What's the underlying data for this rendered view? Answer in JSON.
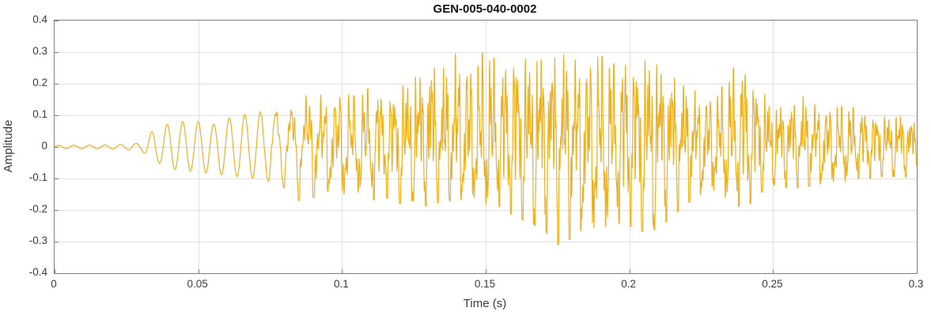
{
  "chart_data": {
    "type": "line",
    "title": "GEN-005-040-0002",
    "xlabel": "Time (s)",
    "ylabel": "Amplitude",
    "xlim": [
      0,
      0.3
    ],
    "ylim": [
      -0.4,
      0.4
    ],
    "grid": true,
    "line_color": "#EDB120",
    "axis_color": "#7f7f7f",
    "grid_color": "#e0e0e0",
    "x_tick_labels": [
      "0",
      "0.05",
      "0.1",
      "0.15",
      "0.2",
      "0.25",
      "0.3"
    ],
    "x_tick_values": [
      0,
      0.05,
      0.1,
      0.15,
      0.2,
      0.25,
      0.3
    ],
    "y_tick_labels": [
      "-0.4",
      "-0.3",
      "-0.2",
      "-0.1",
      "0",
      "0.1",
      "0.2",
      "0.3",
      "0.4"
    ],
    "y_tick_values": [
      -0.4,
      -0.3,
      -0.2,
      -0.1,
      0,
      0.1,
      0.2,
      0.3,
      0.4
    ],
    "series": [
      {
        "name": "waveform",
        "description": "dense audio waveform; envelope estimates of peak amplitude vs time",
        "envelope_upper": [
          [
            0,
            0.005
          ],
          [
            0.02,
            0.006
          ],
          [
            0.03,
            0.012
          ],
          [
            0.034,
            0.05
          ],
          [
            0.04,
            0.075
          ],
          [
            0.045,
            0.08
          ],
          [
            0.05,
            0.08
          ],
          [
            0.055,
            0.07
          ],
          [
            0.06,
            0.09
          ],
          [
            0.065,
            0.1
          ],
          [
            0.07,
            0.11
          ],
          [
            0.075,
            0.12
          ],
          [
            0.08,
            0.13
          ],
          [
            0.085,
            0.16
          ],
          [
            0.09,
            0.18
          ],
          [
            0.095,
            0.15
          ],
          [
            0.1,
            0.17
          ],
          [
            0.105,
            0.16
          ],
          [
            0.11,
            0.19
          ],
          [
            0.115,
            0.18
          ],
          [
            0.12,
            0.2
          ],
          [
            0.125,
            0.24
          ],
          [
            0.13,
            0.33
          ],
          [
            0.135,
            0.26
          ],
          [
            0.14,
            0.3
          ],
          [
            0.145,
            0.25
          ],
          [
            0.15,
            0.31
          ],
          [
            0.155,
            0.26
          ],
          [
            0.16,
            0.32
          ],
          [
            0.165,
            0.28
          ],
          [
            0.17,
            0.33
          ],
          [
            0.175,
            0.33
          ],
          [
            0.18,
            0.28
          ],
          [
            0.185,
            0.26
          ],
          [
            0.19,
            0.29
          ],
          [
            0.195,
            0.26
          ],
          [
            0.2,
            0.31
          ],
          [
            0.205,
            0.28
          ],
          [
            0.21,
            0.3
          ],
          [
            0.215,
            0.26
          ],
          [
            0.22,
            0.2
          ],
          [
            0.225,
            0.16
          ],
          [
            0.23,
            0.15
          ],
          [
            0.235,
            0.24
          ],
          [
            0.24,
            0.28
          ],
          [
            0.245,
            0.2
          ],
          [
            0.25,
            0.14
          ],
          [
            0.255,
            0.16
          ],
          [
            0.26,
            0.17
          ],
          [
            0.265,
            0.13
          ],
          [
            0.27,
            0.12
          ],
          [
            0.275,
            0.13
          ],
          [
            0.28,
            0.12
          ],
          [
            0.285,
            0.11
          ],
          [
            0.29,
            0.1
          ],
          [
            0.295,
            0.12
          ],
          [
            0.3,
            0.09
          ]
        ],
        "envelope_lower": [
          [
            0,
            -0.005
          ],
          [
            0.02,
            -0.006
          ],
          [
            0.03,
            -0.012
          ],
          [
            0.034,
            -0.04
          ],
          [
            0.04,
            -0.07
          ],
          [
            0.05,
            -0.08
          ],
          [
            0.06,
            -0.09
          ],
          [
            0.07,
            -0.1
          ],
          [
            0.075,
            -0.11
          ],
          [
            0.08,
            -0.13
          ],
          [
            0.085,
            -0.17
          ],
          [
            0.09,
            -0.16
          ],
          [
            0.095,
            -0.14
          ],
          [
            0.1,
            -0.15
          ],
          [
            0.105,
            -0.14
          ],
          [
            0.11,
            -0.17
          ],
          [
            0.115,
            -0.16
          ],
          [
            0.12,
            -0.18
          ],
          [
            0.125,
            -0.17
          ],
          [
            0.13,
            -0.19
          ],
          [
            0.135,
            -0.17
          ],
          [
            0.14,
            -0.17
          ],
          [
            0.145,
            -0.16
          ],
          [
            0.15,
            -0.18
          ],
          [
            0.155,
            -0.19
          ],
          [
            0.16,
            -0.22
          ],
          [
            0.165,
            -0.24
          ],
          [
            0.17,
            -0.26
          ],
          [
            0.175,
            -0.31
          ],
          [
            0.18,
            -0.29
          ],
          [
            0.185,
            -0.25
          ],
          [
            0.19,
            -0.26
          ],
          [
            0.195,
            -0.24
          ],
          [
            0.2,
            -0.25
          ],
          [
            0.205,
            -0.27
          ],
          [
            0.21,
            -0.26
          ],
          [
            0.215,
            -0.22
          ],
          [
            0.22,
            -0.18
          ],
          [
            0.225,
            -0.15
          ],
          [
            0.23,
            -0.14
          ],
          [
            0.235,
            -0.17
          ],
          [
            0.24,
            -0.2
          ],
          [
            0.245,
            -0.15
          ],
          [
            0.25,
            -0.12
          ],
          [
            0.255,
            -0.13
          ],
          [
            0.26,
            -0.13
          ],
          [
            0.265,
            -0.12
          ],
          [
            0.27,
            -0.11
          ],
          [
            0.275,
            -0.11
          ],
          [
            0.28,
            -0.1
          ],
          [
            0.285,
            -0.1
          ],
          [
            0.29,
            -0.09
          ],
          [
            0.295,
            -0.1
          ],
          [
            0.3,
            -0.08
          ]
        ]
      }
    ]
  }
}
